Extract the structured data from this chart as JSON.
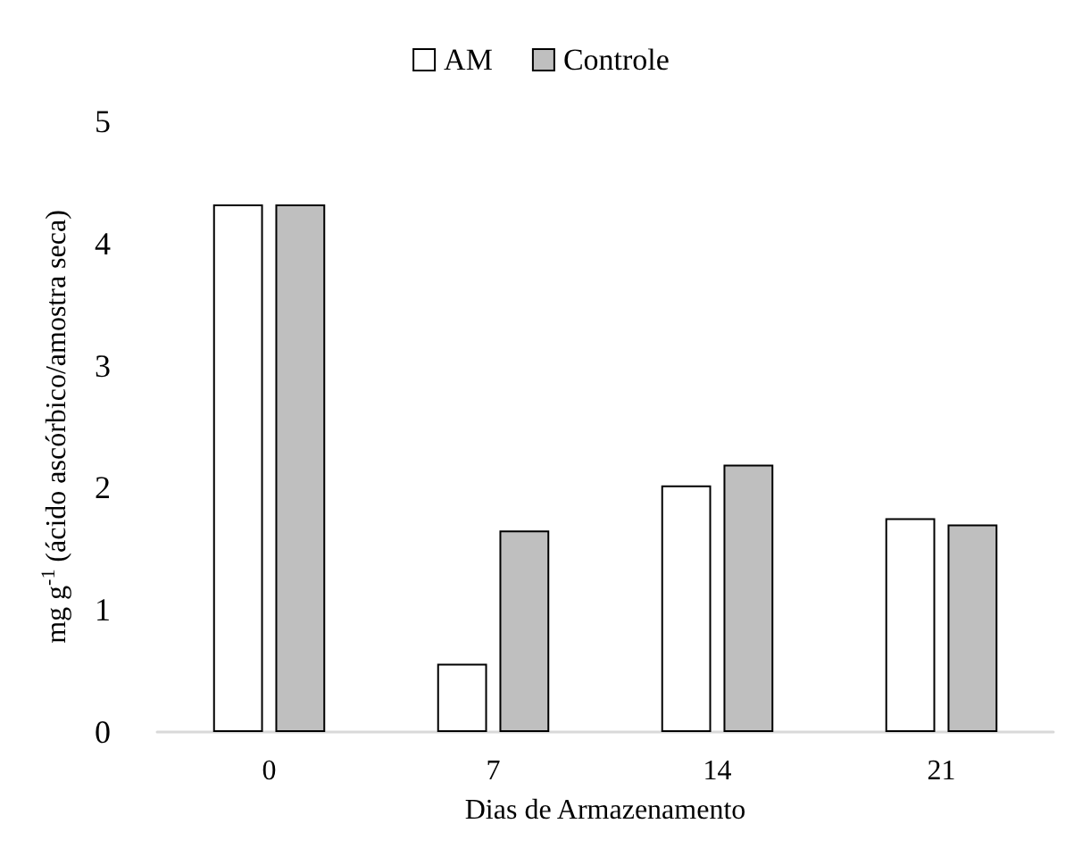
{
  "chart_data": {
    "type": "bar",
    "xlabel": "Dias de Armazenamento",
    "ylabel": "mg g$^{-1}$ (ácido ascórbico/amostra seca)",
    "categories": [
      "0",
      "7",
      "14",
      "21"
    ],
    "series": [
      {
        "name": "AM",
        "color": "#ffffff",
        "values": [
          4.32,
          0.56,
          2.02,
          1.75
        ]
      },
      {
        "name": "Controle",
        "color": "#bfbfbf",
        "values": [
          4.32,
          1.65,
          2.19,
          1.7
        ]
      }
    ],
    "ylim": [
      0,
      5
    ],
    "yticks": [
      0,
      1,
      2,
      3,
      4,
      5
    ],
    "grid": false,
    "legend": "top"
  }
}
